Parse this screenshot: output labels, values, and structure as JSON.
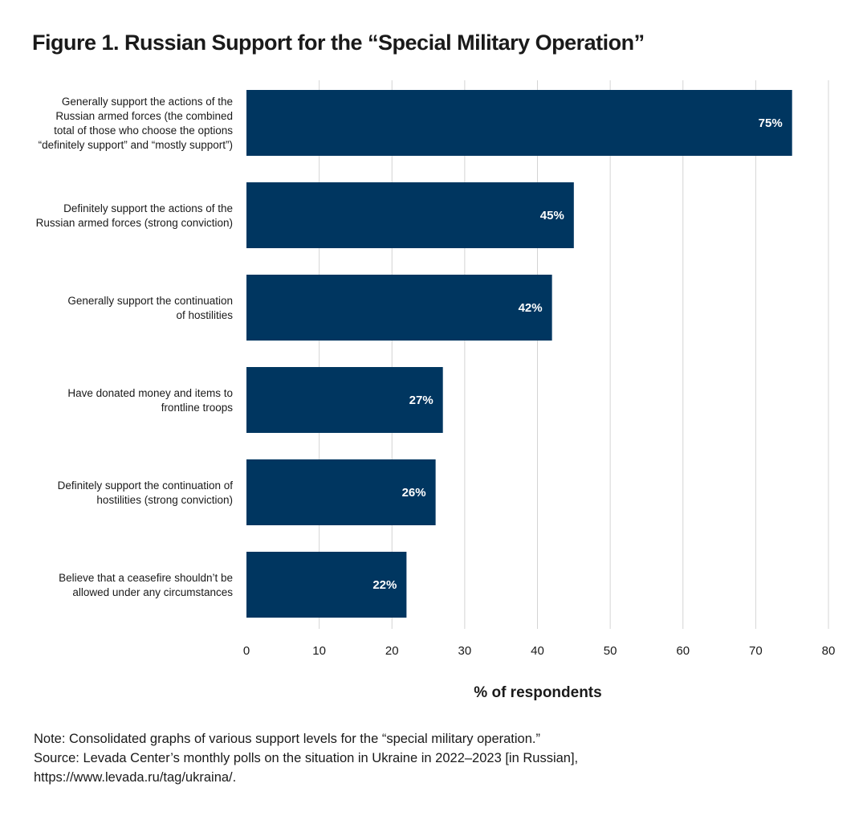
{
  "title": "Figure 1. Russian Support for the “Special Military Operation”",
  "chart_data": {
    "type": "bar",
    "orientation": "horizontal",
    "categories": [
      [
        "Generally support the actions of the",
        "Russian armed forces (the combined",
        "total of those who choose the options",
        "“definitely support” and “mostly support”)"
      ],
      [
        "Definitely support the actions of the",
        "Russian armed forces (strong conviction)"
      ],
      [
        "Generally support the continuation",
        "of hostilities"
      ],
      [
        "Have donated money and items to",
        "frontline troops"
      ],
      [
        "Definitely support the continuation of",
        "hostilities (strong conviction)"
      ],
      [
        "Believe that a ceasefire shouldn’t be",
        "allowed under any circumstances"
      ]
    ],
    "values": [
      75,
      45,
      42,
      27,
      26,
      22
    ],
    "data_labels": [
      "75%",
      "45%",
      "42%",
      "27%",
      "26%",
      "22%"
    ],
    "xlim": [
      0,
      80
    ],
    "xticks": [
      0,
      10,
      20,
      30,
      40,
      50,
      60,
      70,
      80
    ],
    "xlabel": "% of respondents",
    "grid": "vertical",
    "bar_color": "#003660"
  },
  "notes": {
    "note": "Note: Consolidated graphs of various support levels for the “special military operation.”",
    "source": "Source: Levada Center’s monthly polls on the situation in Ukraine in 2022–2023 [in Russian],",
    "url": "https://www.levada.ru/tag/ukraina/."
  }
}
